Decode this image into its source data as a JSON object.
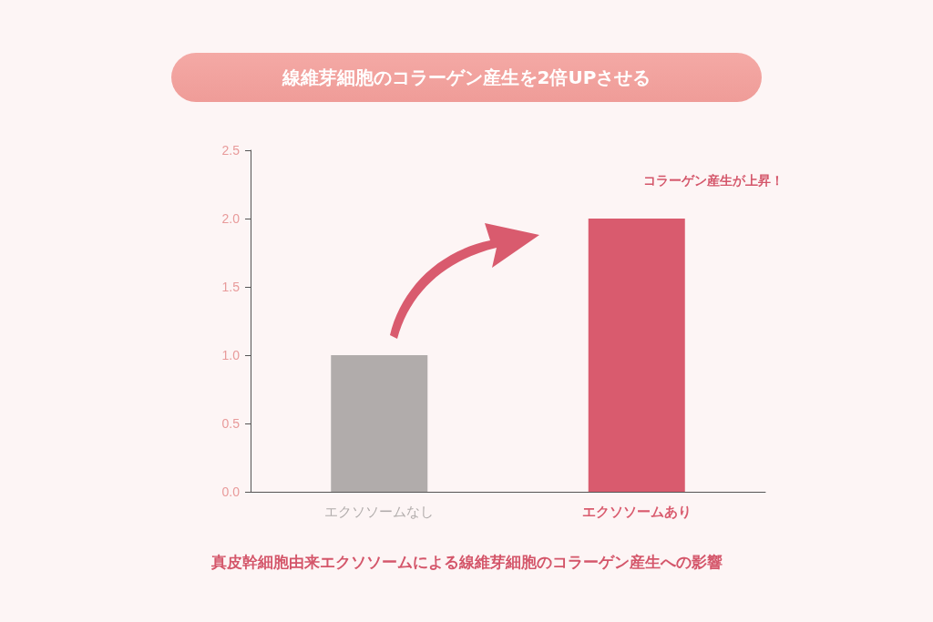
{
  "chart_data": {
    "type": "bar",
    "title": "線維芽細胞のコラーゲン産生を2倍UPさせる",
    "categories": [
      "エクソソームなし",
      "エクソソームあり"
    ],
    "values": [
      1.0,
      2.0
    ],
    "colors": [
      "#b1acab",
      "#d95b6e"
    ],
    "ylim": [
      0,
      2.5
    ],
    "yticks": [
      {
        "value": 0,
        "label": "0.0"
      },
      {
        "value": 0.5,
        "label": "0.5"
      },
      {
        "value": 1,
        "label": "1.0"
      },
      {
        "value": 1.5,
        "label": "1.5"
      },
      {
        "value": 2,
        "label": "2.0"
      },
      {
        "value": 2.5,
        "label": "2.5"
      }
    ],
    "grid": false,
    "annotations": [
      "コラーゲン産生が上昇！",
      "真皮幹細胞由来エクソソームによる線維芽細胞のコラーゲン産生への影響"
    ]
  }
}
